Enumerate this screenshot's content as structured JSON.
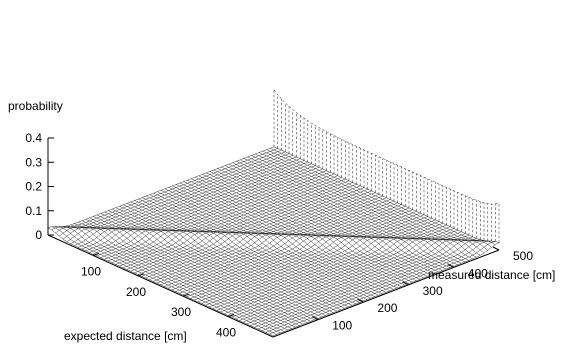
{
  "chart_data": {
    "type": "surface",
    "title": "",
    "zlabel": "probability",
    "xlabel": "expected distance [cm]",
    "ylabel": "measured distance [cm]",
    "xlim": [
      0,
      500
    ],
    "ylim": [
      0,
      500
    ],
    "zlim": [
      0,
      0.4
    ],
    "x_ticks": [
      100,
      200,
      300,
      400
    ],
    "y_ticks": [
      100,
      200,
      300,
      400,
      500
    ],
    "z_ticks": [
      0,
      0.1,
      0.2,
      0.3,
      0.4
    ],
    "x_tick_labels": [
      "100",
      "200",
      "300",
      "400"
    ],
    "y_tick_labels": [
      "100",
      "200",
      "300",
      "400",
      "500"
    ],
    "z_tick_labels": [
      "0",
      "0.1",
      "0.2",
      "0.3",
      "0.4"
    ],
    "surface_model": {
      "uniform_floor": 0.005,
      "gaussian_peak": 0.025,
      "gaussian_sigma_cm": 20,
      "max_range_cm": 500,
      "max_range_probability": 0.4
    },
    "mesh_resolution": [
      60,
      60
    ]
  }
}
